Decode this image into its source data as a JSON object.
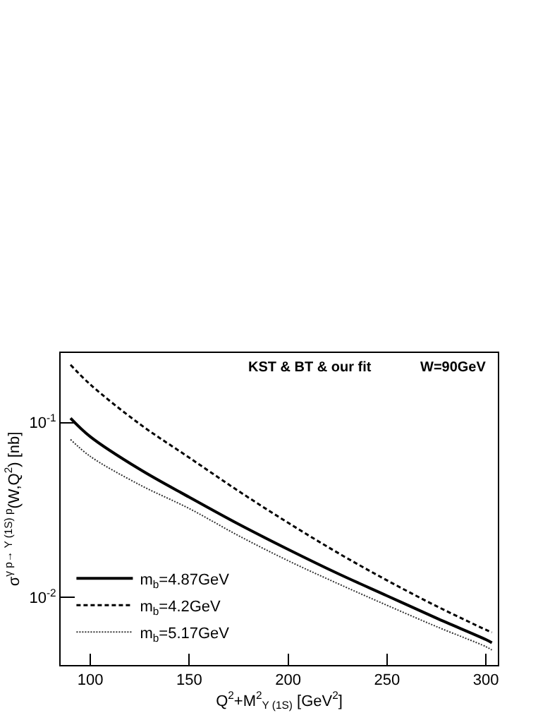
{
  "chart_data": {
    "type": "line",
    "xlabel": "Q$^{2}$+M$^{2}$$_{Υ (1S)}$ [GeV$^{2}$]",
    "ylabel": "σ$^{γ p→ Υ (1S) p}$(W,Q$^{2}$) [nb]",
    "annotations": [
      "KST & BT & our fit",
      "W=90GeV"
    ],
    "x": [
      90,
      100,
      125,
      150,
      175,
      200,
      225,
      250,
      275,
      300,
      303
    ],
    "series": [
      {
        "name": "m$_{b}$=4.87GeV",
        "color": "#000000",
        "line_style": "solid",
        "values": [
          0.106,
          0.083,
          0.054,
          0.0374,
          0.0262,
          0.0188,
          0.0137,
          0.0102,
          0.0076,
          0.00573,
          0.0055
        ]
      },
      {
        "name": "m$_{b}$=4.2GeV",
        "color": "#000000",
        "line_style": "dashed",
        "values": [
          0.214,
          0.165,
          0.098,
          0.063,
          0.0405,
          0.0267,
          0.018,
          0.0125,
          0.0089,
          0.00652,
          0.0063
        ]
      },
      {
        "name": "m$_{b}$=5.17GeV",
        "color": "#333333",
        "line_style": "dotted",
        "values": [
          0.08,
          0.064,
          0.044,
          0.0322,
          0.0225,
          0.0162,
          0.012,
          0.009,
          0.0068,
          0.00522,
          0.005
        ]
      }
    ],
    "log": "y",
    "xlim": [
      85,
      306
    ],
    "ylim": [
      0.0041,
      0.25
    ],
    "xticks": [
      100,
      150,
      200,
      250,
      300
    ],
    "yticks": [
      {
        "value": 0.01,
        "label": "10$^{-2}$"
      },
      {
        "value": 0.1,
        "label": "10$^{-1}$"
      }
    ],
    "legend": "bottom left"
  }
}
